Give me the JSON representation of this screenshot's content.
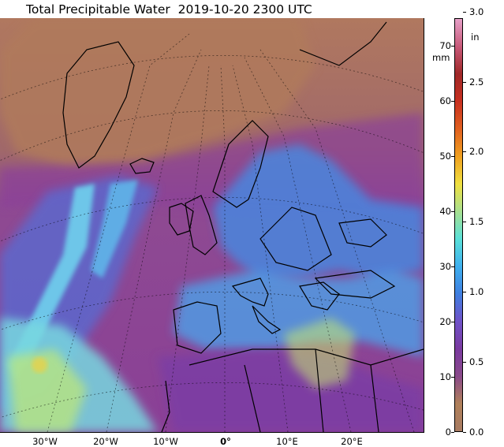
{
  "title": "Total Precipitable Water  2019-10-20 2300 UTC",
  "map": {
    "longitude_labels": [
      "30°W",
      "20°W",
      "10°W",
      "0°",
      "10°E",
      "20°E"
    ],
    "bold_label": "0°"
  },
  "colorbar": {
    "mm_unit": "mm",
    "in_unit": "in",
    "mm_ticks": [
      "0",
      "10",
      "20",
      "30",
      "40",
      "50",
      "60",
      "70"
    ],
    "in_ticks": [
      "0.0",
      "0.5",
      "1.0",
      "1.5",
      "2.0",
      "2.5",
      "3.0"
    ],
    "mm_range": [
      0,
      75
    ],
    "color_stops": [
      "#a87b62",
      "#b0805a",
      "#8a4a8a",
      "#7a3aa0",
      "#6f52c8",
      "#3f7fe0",
      "#3fb0ee",
      "#5ae0d8",
      "#a8e090",
      "#f0e040",
      "#f0a020",
      "#e06020",
      "#c83020",
      "#a02828",
      "#c85a7a",
      "#e6a0c8"
    ]
  }
}
